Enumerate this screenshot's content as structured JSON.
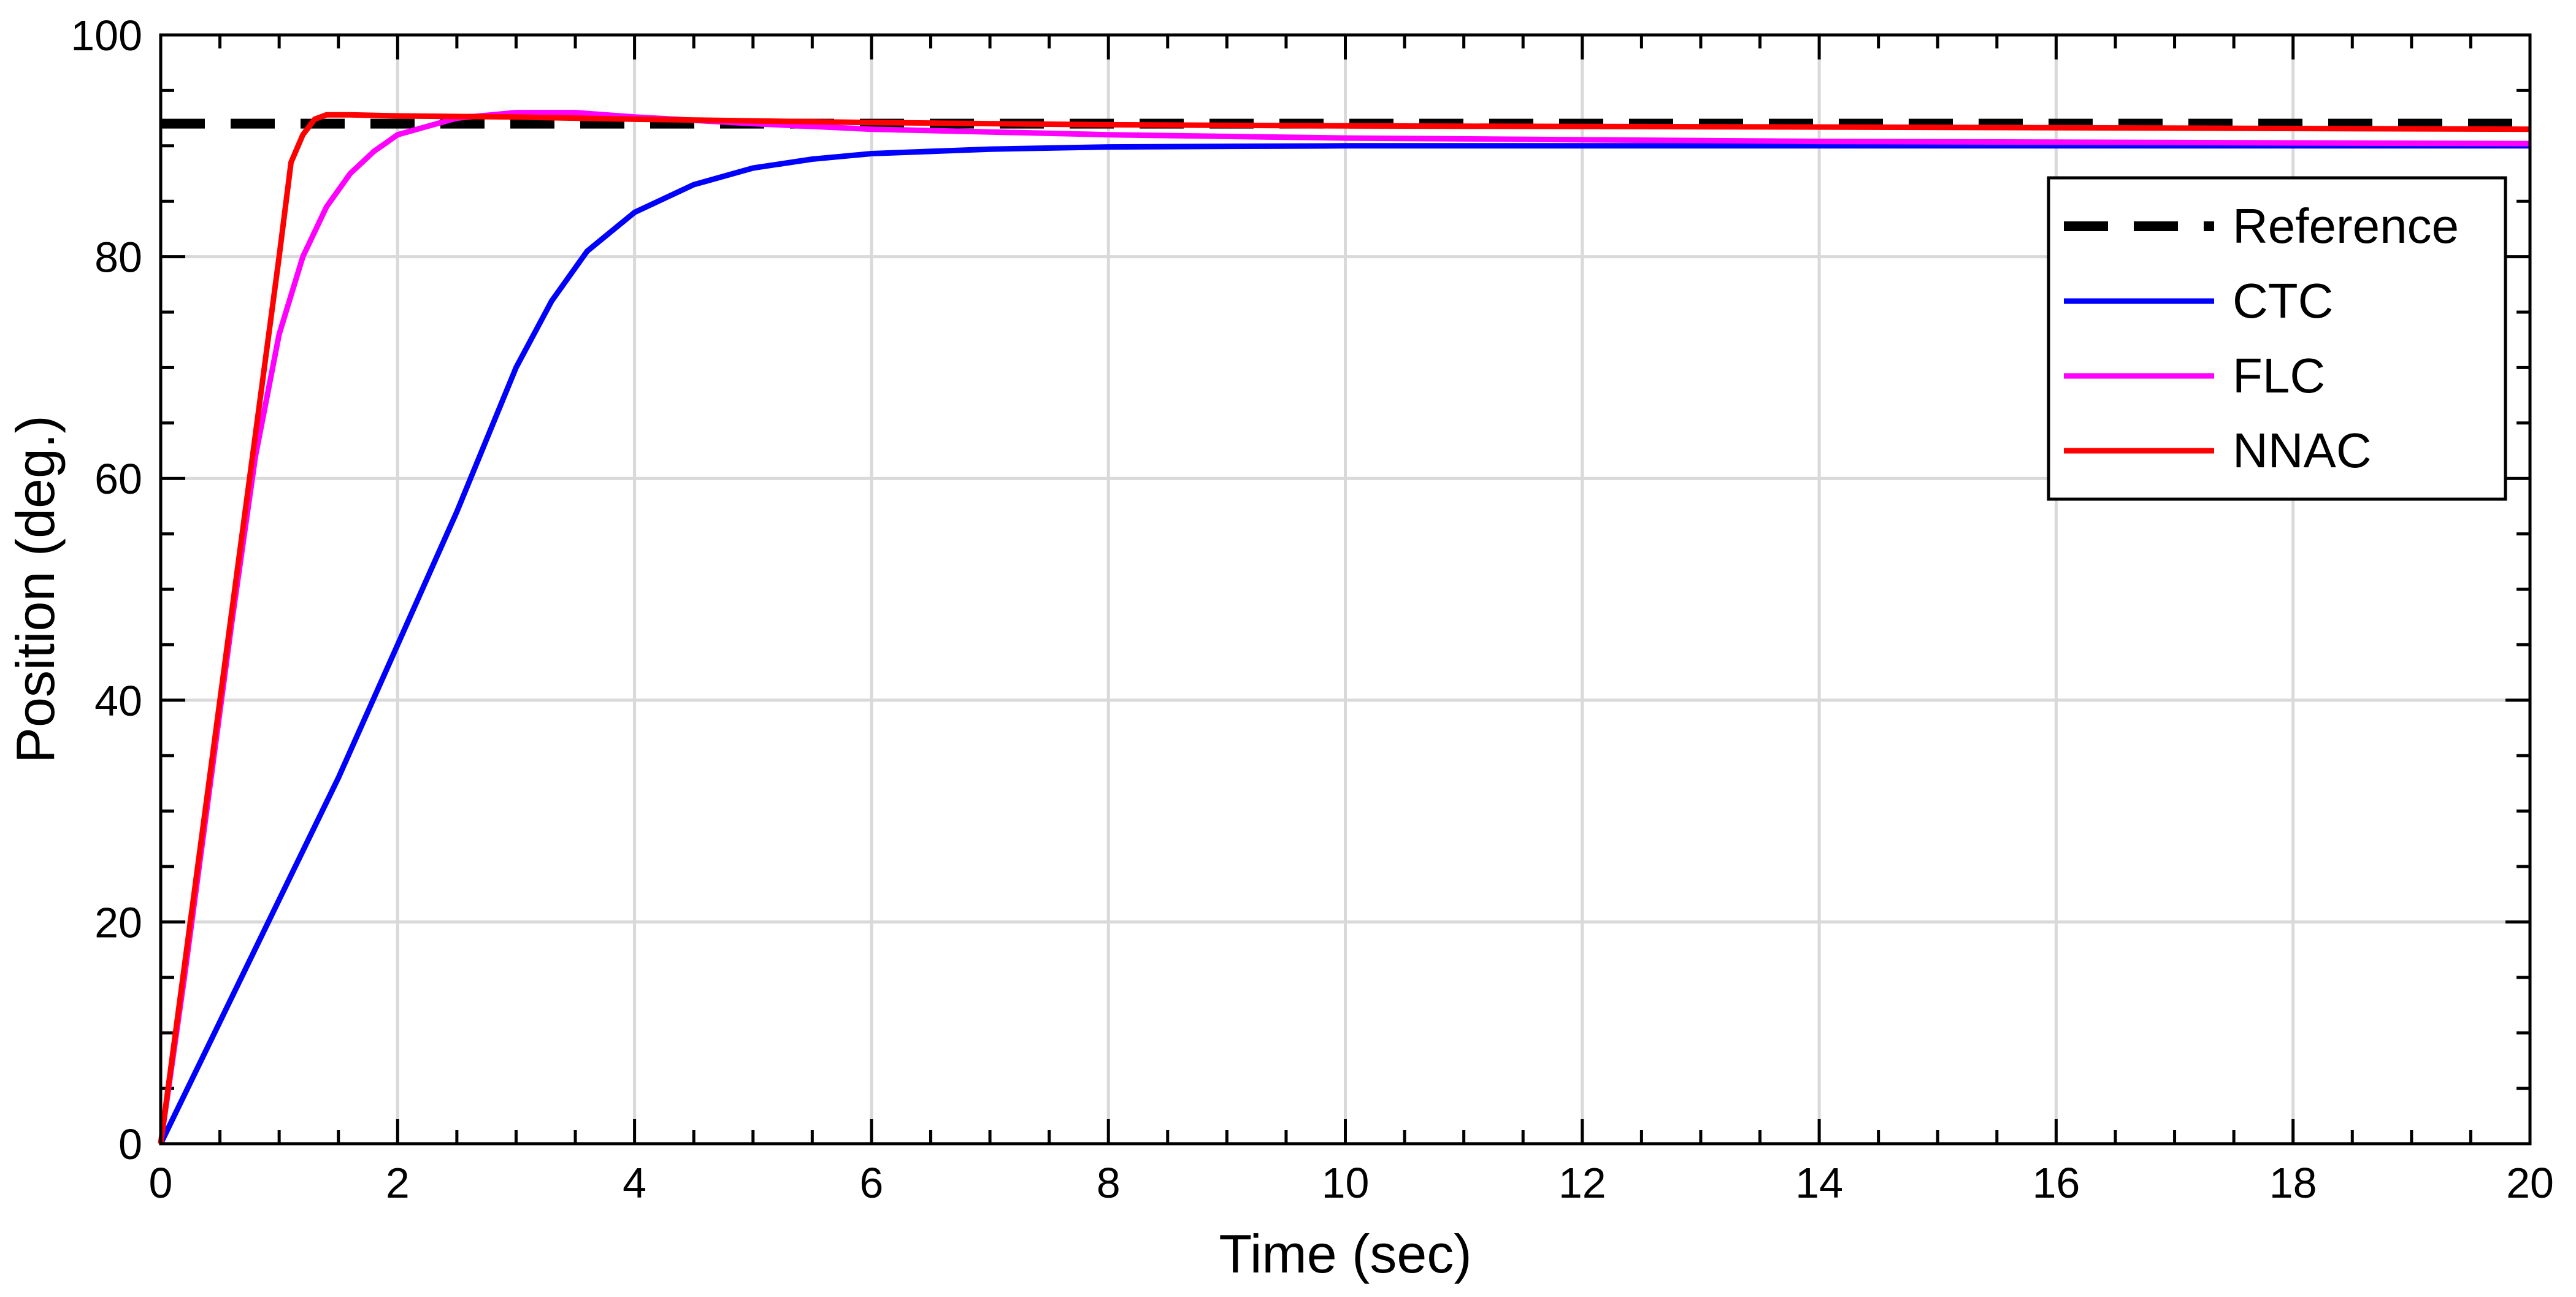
{
  "chart_data": {
    "type": "line",
    "title": "",
    "xlabel": "Time (sec)",
    "ylabel": "Position (deg.)",
    "xlim": [
      0,
      20
    ],
    "ylim": [
      0,
      100
    ],
    "xticks": [
      0,
      2,
      4,
      6,
      8,
      10,
      12,
      14,
      16,
      18,
      20
    ],
    "yticks": [
      0,
      20,
      40,
      60,
      80,
      100
    ],
    "xtick_labels": [
      "0",
      "2",
      "4",
      "6",
      "8",
      "10",
      "12",
      "14",
      "16",
      "18",
      "20"
    ],
    "ytick_labels": [
      "0",
      "20",
      "40",
      "60",
      "80",
      "100"
    ],
    "grid": true,
    "minor_ticks": true,
    "legend_position": "top-right",
    "series": [
      {
        "name": "Reference",
        "color": "#000000",
        "style": "dashed",
        "x": [
          0,
          20
        ],
        "y": [
          92,
          92
        ]
      },
      {
        "name": "CTC",
        "color": "#0000ff",
        "style": "solid",
        "x": [
          0,
          0.5,
          1.0,
          1.5,
          2.0,
          2.5,
          3.0,
          3.3,
          3.6,
          4.0,
          4.5,
          5.0,
          5.5,
          6.0,
          7.0,
          8.0,
          10.0,
          14.0,
          20.0
        ],
        "y": [
          0,
          11,
          22,
          33,
          45,
          57,
          70,
          76,
          80.5,
          84,
          86.5,
          88,
          88.8,
          89.3,
          89.7,
          89.9,
          90,
          90,
          90
        ]
      },
      {
        "name": "FLC",
        "color": "#ff00ff",
        "style": "solid",
        "x": [
          0,
          0.2,
          0.4,
          0.6,
          0.8,
          1.0,
          1.2,
          1.4,
          1.6,
          1.8,
          2.0,
          2.5,
          3.0,
          3.5,
          4.0,
          5.0,
          6.0,
          8.0,
          10.0,
          14.0,
          20.0
        ],
        "y": [
          0,
          15,
          31,
          47,
          62,
          73,
          80,
          84.5,
          87.5,
          89.5,
          91,
          92.5,
          93,
          93,
          92.6,
          92,
          91.5,
          91.0,
          90.7,
          90.4,
          90.2
        ]
      },
      {
        "name": "NNAC",
        "color": "#ff0000",
        "style": "solid",
        "x": [
          0,
          0.25,
          0.5,
          0.75,
          1.0,
          1.1,
          1.2,
          1.3,
          1.4,
          1.6,
          2.0,
          3.0,
          4.0,
          6.0,
          8.0,
          10.0,
          14.0,
          20.0
        ],
        "y": [
          0,
          20,
          40,
          60,
          80,
          88.5,
          91,
          92.4,
          92.8,
          92.8,
          92.7,
          92.6,
          92.4,
          92.1,
          91.9,
          91.8,
          91.7,
          91.5
        ]
      }
    ]
  }
}
